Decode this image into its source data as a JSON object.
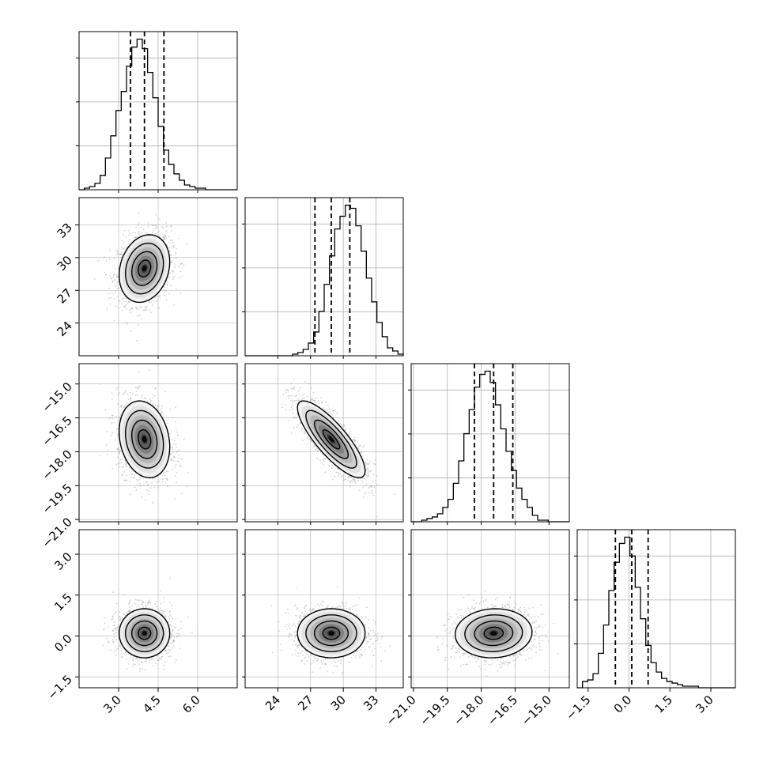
{
  "chart_data": {
    "type": "corner",
    "title": "",
    "grid": true,
    "parameters": [
      {
        "index": 0,
        "range": [
          1.5,
          7.5
        ],
        "ticks": [
          3.0,
          4.5,
          6.0
        ],
        "tick_labels": [
          "3.0",
          "4.5",
          "6.0"
        ],
        "quantiles": [
          3.45,
          3.98,
          4.72
        ]
      },
      {
        "index": 1,
        "range": [
          21,
          35.5
        ],
        "ticks": [
          24,
          27,
          30,
          33
        ],
        "tick_labels": [
          "24",
          "27",
          "30",
          "33"
        ],
        "quantiles": [
          27.4,
          28.9,
          30.6
        ]
      },
      {
        "index": 2,
        "range": [
          -21.1,
          -14.1
        ],
        "ticks": [
          -21.0,
          -19.5,
          -18.0,
          -16.5,
          -15.0
        ],
        "tick_labels": [
          "−21.0",
          "−19.5",
          "−18.0",
          "−16.5",
          "−15.0"
        ],
        "quantiles": [
          -18.3,
          -17.45,
          -16.6
        ]
      },
      {
        "index": 3,
        "range": [
          -1.9,
          3.9
        ],
        "ticks": [
          -1.5,
          0.0,
          1.5,
          3.0
        ],
        "tick_labels": [
          "−1.5",
          "0.0",
          "1.5",
          "3.0"
        ],
        "quantiles": [
          -0.5,
          0.1,
          0.7
        ]
      }
    ],
    "marginals": [
      {
        "param": 0,
        "bin_edges": [
          1.5,
          7.5
        ],
        "counts": [
          0,
          1,
          2,
          4,
          9,
          20,
          34,
          50,
          62,
          78,
          90,
          95,
          89,
          74,
          58,
          40,
          25,
          16,
          10,
          6,
          3,
          2,
          1,
          1,
          0,
          0,
          0,
          0,
          0,
          0
        ]
      },
      {
        "param": 1,
        "bin_edges": [
          21,
          35.5
        ],
        "counts": [
          0,
          0,
          0,
          0,
          0,
          0,
          0,
          0,
          0,
          1,
          2,
          4,
          8,
          15,
          28,
          45,
          63,
          80,
          88,
          95,
          93,
          82,
          66,
          49,
          34,
          21,
          12,
          5,
          3,
          1
        ]
      },
      {
        "param": 2,
        "bin_edges": [
          -21.1,
          -14.1
        ],
        "counts": [
          0,
          0,
          1,
          2,
          3,
          5,
          9,
          14,
          24,
          38,
          55,
          70,
          84,
          92,
          94,
          87,
          73,
          58,
          44,
          32,
          21,
          14,
          9,
          4,
          1,
          1,
          0,
          0,
          0,
          0
        ]
      },
      {
        "param": 3,
        "bin_edges": [
          -1.9,
          3.9
        ],
        "counts": [
          0,
          4,
          5,
          9,
          22,
          40,
          62,
          80,
          92,
          96,
          84,
          64,
          44,
          27,
          16,
          10,
          6,
          4,
          3,
          2,
          1,
          1,
          1,
          0,
          0,
          0,
          0,
          0,
          0,
          0
        ]
      }
    ],
    "pairs": [
      {
        "x_param": 0,
        "y_param": 1,
        "mean": [
          3.98,
          29.0
        ],
        "sigma": [
          0.48,
          1.55
        ],
        "rho": 0.2
      },
      {
        "x_param": 0,
        "y_param": 2,
        "mean": [
          3.98,
          -17.45
        ],
        "sigma": [
          0.48,
          0.85
        ],
        "rho": -0.2
      },
      {
        "x_param": 1,
        "y_param": 2,
        "mean": [
          28.9,
          -17.45
        ],
        "sigma": [
          1.55,
          0.85
        ],
        "rho": -0.82
      },
      {
        "x_param": 0,
        "y_param": 3,
        "mean": [
          3.98,
          0.1
        ],
        "sigma": [
          0.48,
          0.45
        ],
        "rho": 0.0
      },
      {
        "x_param": 1,
        "y_param": 3,
        "mean": [
          28.9,
          0.1
        ],
        "sigma": [
          1.55,
          0.45
        ],
        "rho": 0.0
      },
      {
        "x_param": 2,
        "y_param": 3,
        "mean": [
          -17.45,
          0.1
        ],
        "sigma": [
          0.85,
          0.45
        ],
        "rho": 0.05
      }
    ],
    "contour_sigma_levels": [
      0.5,
      1.0,
      1.5,
      2.0
    ],
    "colors": {
      "hist_line": "#000000",
      "contour": "#000000",
      "density_dark": "#333333",
      "points": "#9a9a9a",
      "grid": "#b0b0b0",
      "quantile_line": "#000000"
    }
  }
}
